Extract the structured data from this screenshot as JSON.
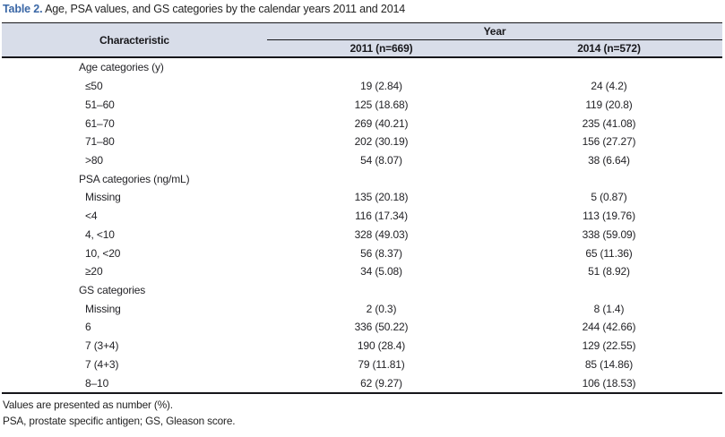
{
  "title": {
    "label": "Table 2.",
    "caption": "Age, PSA values, and GS categories by the calendar years 2011 and 2014"
  },
  "table": {
    "header": {
      "characteristic": "Characteristic",
      "year_group": "Year",
      "col_2011": "2011 (n=669)",
      "col_2014": "2014 (n=572)"
    },
    "rows": [
      {
        "type": "section",
        "label": "Age categories (y)",
        "v2011": "",
        "v2014": ""
      },
      {
        "type": "item",
        "label": "≤50",
        "v2011": "19 (2.84)",
        "v2014": "24 (4.2)"
      },
      {
        "type": "item",
        "label": "51–60",
        "v2011": "125 (18.68)",
        "v2014": "119 (20.8)"
      },
      {
        "type": "item",
        "label": "61–70",
        "v2011": "269 (40.21)",
        "v2014": "235 (41.08)"
      },
      {
        "type": "item",
        "label": "71–80",
        "v2011": "202 (30.19)",
        "v2014": "156 (27.27)"
      },
      {
        "type": "item",
        "label": ">80",
        "v2011": "54 (8.07)",
        "v2014": "38 (6.64)"
      },
      {
        "type": "section",
        "label": "PSA categories (ng/mL)",
        "v2011": "",
        "v2014": ""
      },
      {
        "type": "item",
        "label": "Missing",
        "v2011": "135 (20.18)",
        "v2014": "5 (0.87)"
      },
      {
        "type": "item",
        "label": "<4",
        "v2011": "116 (17.34)",
        "v2014": "113 (19.76)"
      },
      {
        "type": "item",
        "label": "4, <10",
        "v2011": "328 (49.03)",
        "v2014": "338 (59.09)"
      },
      {
        "type": "item",
        "label": "10, <20",
        "v2011": "56 (8.37)",
        "v2014": "65 (11.36)"
      },
      {
        "type": "item",
        "label": "≥20",
        "v2011": "34 (5.08)",
        "v2014": "51 (8.92)"
      },
      {
        "type": "section",
        "label": "GS categories",
        "v2011": "",
        "v2014": ""
      },
      {
        "type": "item",
        "label": "Missing",
        "v2011": "2 (0.3)",
        "v2014": "8 (1.4)"
      },
      {
        "type": "item",
        "label": "6",
        "v2011": "336 (50.22)",
        "v2014": "244 (42.66)"
      },
      {
        "type": "item",
        "label": "7 (3+4)",
        "v2011": "190 (28.4)",
        "v2014": "129 (22.55)"
      },
      {
        "type": "item",
        "label": "7 (4+3)",
        "v2011": "79 (11.81)",
        "v2014": "85 (14.86)"
      },
      {
        "type": "item",
        "label": "8–10",
        "v2011": "62 (9.27)",
        "v2014": "106 (18.53)"
      }
    ]
  },
  "footnotes": [
    "Values are presented as number (%).",
    "PSA, prostate specific antigen; GS, Gleason score."
  ],
  "colors": {
    "title_accent": "#3a67a6",
    "header_background": "#d8dde9",
    "border": "#16161a",
    "text": "#232327"
  }
}
